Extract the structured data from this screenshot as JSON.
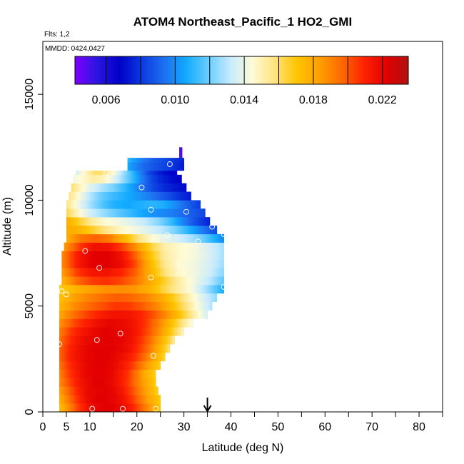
{
  "chart_data": {
    "type": "heatmap",
    "title": "ATOM4 Northeast_Pacific_1 HO2_GMI",
    "annotations": [
      "Flts: 1,2",
      "MMDD: 0424,0427"
    ],
    "xlabel": "Latitude (deg N)",
    "ylabel": "Altitude (m)",
    "xlim": [
      0,
      85
    ],
    "ylim": [
      0,
      17500
    ],
    "x_ticks": [
      0,
      5,
      10,
      20,
      30,
      40,
      50,
      60,
      70,
      80
    ],
    "x_minor_ticks": [
      15,
      25,
      35,
      45,
      55,
      65,
      75,
      85
    ],
    "y_ticks": [
      0,
      5000,
      10000,
      15000
    ],
    "marker_latitude": 35,
    "colorbar": {
      "range": [
        0.0042,
        0.0235
      ],
      "ticks": [
        0.006,
        0.01,
        0.014,
        0.018,
        0.022
      ],
      "tick_labels": [
        "0.006",
        "0.010",
        "0.014",
        "0.018",
        "0.022"
      ],
      "colors": [
        "#7f00ff",
        "#2a16e0",
        "#0000c8",
        "#0a3adf",
        "#1e6ff0",
        "#12aaff",
        "#6acdff",
        "#c6ebff",
        "#fffbd6",
        "#ffe27c",
        "#ffc400",
        "#ffa000",
        "#ff6a00",
        "#ff2200",
        "#e30000",
        "#b01212"
      ]
    },
    "rows": [
      {
        "y0": 0,
        "y1": 400,
        "x0": 3.5,
        "x1": 25,
        "values": [
          0.0175,
          0.019,
          0.0205,
          0.0215,
          0.022,
          0.0222,
          0.0222,
          0.0218,
          0.021,
          0.0198,
          0.0185,
          0.0172
        ]
      },
      {
        "y0": 400,
        "y1": 800,
        "x0": 3.5,
        "x1": 25,
        "values": [
          0.018,
          0.0195,
          0.0208,
          0.0218,
          0.0222,
          0.0222,
          0.022,
          0.0215,
          0.0205,
          0.0193,
          0.018,
          0.017
        ]
      },
      {
        "y0": 800,
        "y1": 1200,
        "x0": 3.5,
        "x1": 24.5,
        "values": [
          0.0185,
          0.0198,
          0.021,
          0.0218,
          0.0221,
          0.0222,
          0.022,
          0.0214,
          0.0204,
          0.0192,
          0.018,
          0.0168
        ]
      },
      {
        "y0": 1200,
        "y1": 1600,
        "x0": 3.5,
        "x1": 24,
        "values": [
          0.019,
          0.0202,
          0.0212,
          0.0218,
          0.0222,
          0.0222,
          0.0219,
          0.0213,
          0.0204,
          0.0192,
          0.018,
          0.017
        ]
      },
      {
        "y0": 1600,
        "y1": 2000,
        "x0": 3.5,
        "x1": 24,
        "values": [
          0.0192,
          0.0205,
          0.0213,
          0.022,
          0.0222,
          0.0222,
          0.022,
          0.0213,
          0.0205,
          0.0192,
          0.0178,
          0.0168
        ]
      },
      {
        "y0": 2000,
        "y1": 2400,
        "x0": 3.5,
        "x1": 25,
        "values": [
          0.0195,
          0.0207,
          0.0215,
          0.022,
          0.0222,
          0.0222,
          0.0219,
          0.0213,
          0.0205,
          0.0193,
          0.018,
          0.0168
        ]
      },
      {
        "y0": 2400,
        "y1": 2800,
        "x0": 3.5,
        "x1": 26,
        "values": [
          0.0198,
          0.021,
          0.0217,
          0.0221,
          0.0222,
          0.0222,
          0.0219,
          0.0214,
          0.0206,
          0.0195,
          0.018,
          0.0166
        ]
      },
      {
        "y0": 2800,
        "y1": 3200,
        "x0": 3.5,
        "x1": 27,
        "values": [
          0.0198,
          0.021,
          0.0217,
          0.0221,
          0.0222,
          0.0222,
          0.022,
          0.0216,
          0.0206,
          0.0194,
          0.0178,
          0.016
        ]
      },
      {
        "y0": 3200,
        "y1": 3600,
        "x0": 3.5,
        "x1": 28,
        "values": [
          0.0196,
          0.0208,
          0.0216,
          0.022,
          0.0222,
          0.0222,
          0.022,
          0.0215,
          0.0205,
          0.0192,
          0.0175,
          0.0157
        ]
      },
      {
        "y0": 3600,
        "y1": 4000,
        "x0": 3.5,
        "x1": 30,
        "values": [
          0.0193,
          0.0206,
          0.0214,
          0.0219,
          0.0222,
          0.0221,
          0.0218,
          0.0212,
          0.02,
          0.0186,
          0.0168,
          0.015
        ]
      },
      {
        "y0": 4000,
        "y1": 4400,
        "x0": 3.5,
        "x1": 32,
        "values": [
          0.0188,
          0.0201,
          0.021,
          0.0216,
          0.022,
          0.0219,
          0.0215,
          0.0207,
          0.0194,
          0.0178,
          0.016,
          0.0143
        ]
      },
      {
        "y0": 4400,
        "y1": 4800,
        "x0": 3.5,
        "x1": 35,
        "values": [
          0.0182,
          0.0195,
          0.0204,
          0.0211,
          0.0215,
          0.0215,
          0.021,
          0.0201,
          0.0188,
          0.0171,
          0.0153,
          0.0136
        ]
      },
      {
        "y0": 4800,
        "y1": 5200,
        "x0": 3.5,
        "x1": 36,
        "values": [
          0.0176,
          0.0188,
          0.0196,
          0.0201,
          0.0206,
          0.0205,
          0.0199,
          0.019,
          0.0176,
          0.016,
          0.0144,
          0.013
        ]
      },
      {
        "y0": 5200,
        "y1": 5600,
        "x0": 3.5,
        "x1": 37,
        "values": [
          0.0172,
          0.0184,
          0.019,
          0.0196,
          0.0199,
          0.0197,
          0.0191,
          0.0182,
          0.0168,
          0.0152,
          0.0138,
          0.0125
        ]
      },
      {
        "y0": 5600,
        "y1": 6000,
        "x0": 3.5,
        "x1": 38.5,
        "values": [
          0.0168,
          0.0176,
          0.0183,
          0.0187,
          0.0188,
          0.0186,
          0.0178,
          0.0164,
          0.0152,
          0.0142,
          0.0125,
          0.0108
        ]
      },
      {
        "y0": 6000,
        "y1": 6400,
        "x0": 4,
        "x1": 38.5,
        "values": [
          0.0178,
          0.0196,
          0.0205,
          0.0207,
          0.0203,
          0.0194,
          0.018,
          0.0166,
          0.0152,
          0.0142,
          0.0132,
          0.0118
        ]
      },
      {
        "y0": 6400,
        "y1": 6800,
        "x0": 4,
        "x1": 38.5,
        "values": [
          0.0185,
          0.0205,
          0.0214,
          0.0215,
          0.021,
          0.0198,
          0.0178,
          0.0158,
          0.0146,
          0.0142,
          0.0135,
          0.0124
        ]
      },
      {
        "y0": 6800,
        "y1": 7200,
        "x0": 4,
        "x1": 38.5,
        "values": [
          0.019,
          0.0212,
          0.0222,
          0.0223,
          0.0218,
          0.0202,
          0.0176,
          0.0155,
          0.0145,
          0.0142,
          0.0136,
          0.0127
        ]
      },
      {
        "y0": 7200,
        "y1": 7600,
        "x0": 4,
        "x1": 38.5,
        "values": [
          0.019,
          0.0212,
          0.0222,
          0.0223,
          0.0216,
          0.0198,
          0.0172,
          0.0153,
          0.0146,
          0.0143,
          0.0137,
          0.0128
        ]
      },
      {
        "y0": 7600,
        "y1": 8000,
        "x0": 4.5,
        "x1": 38.5,
        "values": [
          0.0186,
          0.0205,
          0.0216,
          0.0215,
          0.0204,
          0.0186,
          0.0165,
          0.0151,
          0.0146,
          0.0143,
          0.0136,
          0.0128
        ]
      },
      {
        "y0": 8000,
        "y1": 8400,
        "x0": 5,
        "x1": 38.5,
        "values": [
          0.018,
          0.0194,
          0.0198,
          0.0192,
          0.0176,
          0.0158,
          0.0145,
          0.0139,
          0.0134,
          0.0126,
          0.0114,
          0.01
        ]
      },
      {
        "y0": 8400,
        "y1": 8800,
        "x0": 5,
        "x1": 37,
        "values": [
          0.018,
          0.0175,
          0.0165,
          0.0155,
          0.0147,
          0.0142,
          0.0137,
          0.0131,
          0.0121,
          0.0109,
          0.0096,
          0.0085
        ]
      },
      {
        "y0": 8800,
        "y1": 9200,
        "x0": 5,
        "x1": 35.5,
        "values": [
          0.0178,
          0.0165,
          0.0152,
          0.0145,
          0.0142,
          0.0138,
          0.0132,
          0.0124,
          0.0113,
          0.0098,
          0.0085,
          0.0076
        ]
      },
      {
        "y0": 9200,
        "y1": 9600,
        "x0": 5,
        "x1": 34.5,
        "values": [
          0.0162,
          0.0145,
          0.0133,
          0.0125,
          0.0118,
          0.0112,
          0.0106,
          0.0101,
          0.0098,
          0.0094,
          0.0089,
          0.0084
        ]
      },
      {
        "y0": 9600,
        "y1": 10000,
        "x0": 5,
        "x1": 33.5,
        "values": [
          0.0155,
          0.014,
          0.0126,
          0.0115,
          0.0108,
          0.0106,
          0.0108,
          0.011,
          0.0108,
          0.01,
          0.009,
          0.0082
        ]
      },
      {
        "y0": 10000,
        "y1": 10400,
        "x0": 5.5,
        "x1": 31.5,
        "values": [
          0.0155,
          0.0142,
          0.0128,
          0.0118,
          0.0112,
          0.0108,
          0.0103,
          0.0098,
          0.0092,
          0.0086,
          0.0079,
          0.0074
        ]
      },
      {
        "y0": 10400,
        "y1": 10800,
        "x0": 6,
        "x1": 30.5,
        "values": [
          0.0157,
          0.0146,
          0.0136,
          0.0128,
          0.0121,
          0.0112,
          0.0102,
          0.0092,
          0.0083,
          0.0077,
          0.0073,
          0.007
        ]
      },
      {
        "y0": 10800,
        "y1": 11200,
        "x0": 6.5,
        "x1": 29.5,
        "values": [
          0.0142,
          0.0147,
          0.0152,
          0.0149,
          0.0139,
          0.0126,
          0.0112,
          0.0097,
          0.0084,
          0.0076,
          0.0071,
          0.0068
        ]
      },
      {
        "y0": 11200,
        "y1": 11400,
        "x0": 7,
        "x1": 28.5,
        "values": [
          0.0136,
          0.0148,
          0.016,
          0.0158,
          0.0146,
          0.013,
          0.0114,
          0.0098,
          0.0084,
          0.0075,
          0.007,
          0.0066
        ]
      },
      {
        "y0": 11400,
        "y1": 11800,
        "x0": 18,
        "x1": 30,
        "values": [
          0.0105,
          0.0098,
          0.0092,
          0.0088,
          0.0085,
          0.0082,
          0.0078,
          0.0074
        ]
      },
      {
        "y0": 11800,
        "y1": 12000,
        "x0": 18,
        "x1": 30,
        "values": [
          0.011,
          0.0102,
          0.0095,
          0.009,
          0.0086,
          0.0083,
          0.0079,
          0.0076
        ]
      },
      {
        "y0": 12000,
        "y1": 12500,
        "x0": 29,
        "x1": 29.6,
        "values": [
          0.005
        ]
      }
    ],
    "points": [
      [
        10.5,
        150
      ],
      [
        17,
        150
      ],
      [
        24,
        150
      ],
      [
        23.5,
        2650
      ],
      [
        11.5,
        3400
      ],
      [
        16.5,
        3700
      ],
      [
        3.5,
        3200
      ],
      [
        4,
        5700
      ],
      [
        5,
        5550
      ],
      [
        38.5,
        5900
      ],
      [
        23,
        6350
      ],
      [
        12,
        6800
      ],
      [
        9,
        7600
      ],
      [
        33,
        8050
      ],
      [
        26.5,
        8350
      ],
      [
        38.5,
        8400
      ],
      [
        36,
        8750
      ],
      [
        23,
        9550
      ],
      [
        30.5,
        9450
      ],
      [
        21,
        10600
      ],
      [
        13.5,
        11300
      ],
      [
        27,
        11700
      ]
    ]
  }
}
